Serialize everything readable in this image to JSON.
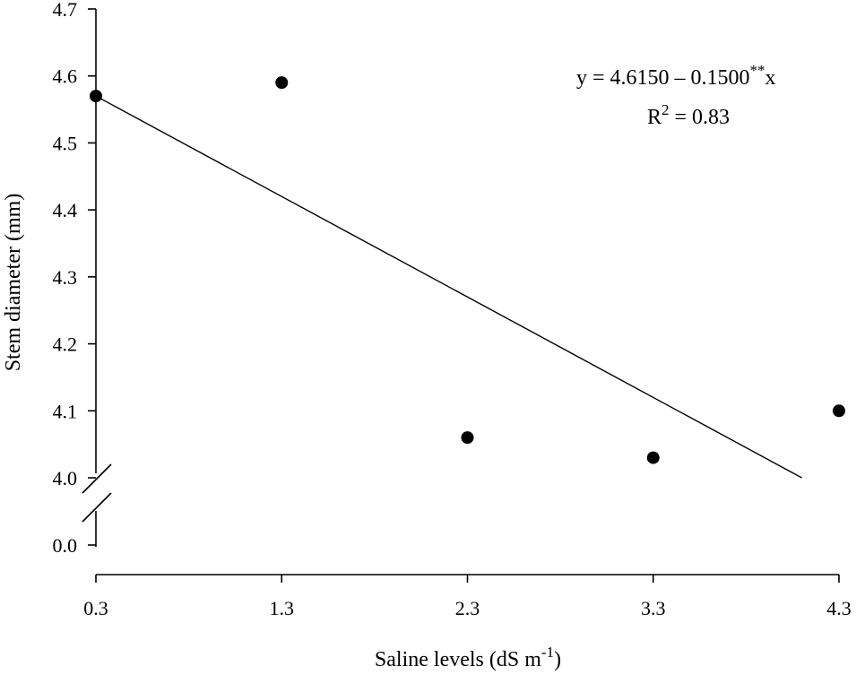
{
  "chart_data": {
    "type": "scatter",
    "xlabel": "Saline levels (dS m",
    "xlabel_sup": "-1",
    "xlabel_end": ")",
    "ylabel": "Stem diameter  (mm)",
    "x_ticks": [
      "0.3",
      "1.3",
      "2.3",
      "3.3",
      "4.3"
    ],
    "y_ticks_upper": [
      "4.0",
      "4.1",
      "4.2",
      "4.3",
      "4.4",
      "4.5",
      "4.6",
      "4.7"
    ],
    "y_tick_lower": "0.0",
    "xlim": [
      0.3,
      4.3
    ],
    "ylim": [
      4.0,
      4.7
    ],
    "y_axis_break": true,
    "grid": false,
    "points": [
      {
        "x": 0.3,
        "y": 4.57
      },
      {
        "x": 1.3,
        "y": 4.59
      },
      {
        "x": 2.3,
        "y": 4.06
      },
      {
        "x": 3.3,
        "y": 4.03
      },
      {
        "x": 4.3,
        "y": 4.1
      }
    ],
    "regression": {
      "intercept": 4.615,
      "slope": -0.15,
      "x_start": 0.3,
      "x_end": 4.1
    },
    "equation": {
      "line1_pre": "y = 4.6150 – 0.1500",
      "line1_sup": "**",
      "line1_post": "x",
      "line2_pre": "R",
      "line2_sup": "2",
      "line2_post": " = 0.83"
    }
  }
}
